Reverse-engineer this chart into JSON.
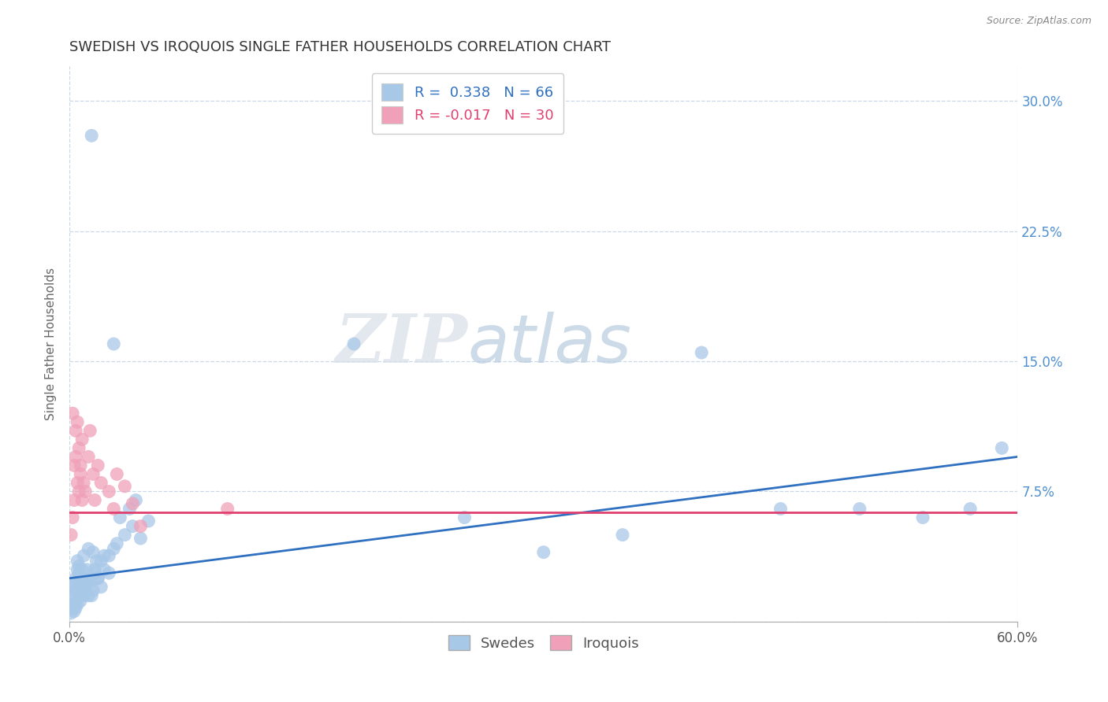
{
  "title": "SWEDISH VS IROQUOIS SINGLE FATHER HOUSEHOLDS CORRELATION CHART",
  "source": "Source: ZipAtlas.com",
  "ylabel": "Single Father Households",
  "xlim": [
    0.0,
    0.6
  ],
  "ylim": [
    0.0,
    0.32
  ],
  "xticks": [
    0.0,
    0.6
  ],
  "xticklabels": [
    "0.0%",
    "60.0%"
  ],
  "yticks": [
    0.0,
    0.075,
    0.15,
    0.225,
    0.3
  ],
  "yticklabels": [
    "",
    "7.5%",
    "15.0%",
    "22.5%",
    "30.0%"
  ],
  "r_swedish": 0.338,
  "n_swedish": 66,
  "r_iroquois": -0.017,
  "n_iroquois": 30,
  "swedish_color": "#a8c8e8",
  "swedish_line_color": "#3070c0",
  "iroquois_color": "#f0a0b8",
  "iroquois_line_color": "#e04070",
  "grid_color": "#c8d8e8",
  "background_color": "#ffffff",
  "watermark_zip": "ZIP",
  "watermark_atlas": "atlas",
  "title_fontsize": 13,
  "axis_label_fontsize": 11,
  "tick_fontsize": 12,
  "legend_fontsize": 13,
  "right_tick_color": "#5090d0",
  "swedish_scatter": [
    [
      0.001,
      0.005
    ],
    [
      0.002,
      0.008
    ],
    [
      0.001,
      0.012
    ],
    [
      0.003,
      0.01
    ],
    [
      0.002,
      0.015
    ],
    [
      0.003,
      0.006
    ],
    [
      0.004,
      0.018
    ],
    [
      0.002,
      0.02
    ],
    [
      0.005,
      0.01
    ],
    [
      0.004,
      0.025
    ],
    [
      0.006,
      0.015
    ],
    [
      0.003,
      0.022
    ],
    [
      0.005,
      0.03
    ],
    [
      0.007,
      0.012
    ],
    [
      0.006,
      0.028
    ],
    [
      0.004,
      0.008
    ],
    [
      0.008,
      0.02
    ],
    [
      0.005,
      0.035
    ],
    [
      0.009,
      0.015
    ],
    [
      0.007,
      0.025
    ],
    [
      0.01,
      0.018
    ],
    [
      0.006,
      0.032
    ],
    [
      0.011,
      0.022
    ],
    [
      0.008,
      0.03
    ],
    [
      0.012,
      0.015
    ],
    [
      0.009,
      0.038
    ],
    [
      0.013,
      0.025
    ],
    [
      0.01,
      0.02
    ],
    [
      0.014,
      0.28
    ],
    [
      0.011,
      0.03
    ],
    [
      0.015,
      0.018
    ],
    [
      0.012,
      0.042
    ],
    [
      0.016,
      0.028
    ],
    [
      0.013,
      0.022
    ],
    [
      0.017,
      0.035
    ],
    [
      0.014,
      0.015
    ],
    [
      0.018,
      0.025
    ],
    [
      0.015,
      0.04
    ],
    [
      0.02,
      0.02
    ],
    [
      0.016,
      0.03
    ],
    [
      0.022,
      0.038
    ],
    [
      0.018,
      0.025
    ],
    [
      0.025,
      0.028
    ],
    [
      0.02,
      0.035
    ],
    [
      0.028,
      0.16
    ],
    [
      0.022,
      0.03
    ],
    [
      0.03,
      0.045
    ],
    [
      0.025,
      0.038
    ],
    [
      0.035,
      0.05
    ],
    [
      0.028,
      0.042
    ],
    [
      0.04,
      0.055
    ],
    [
      0.032,
      0.06
    ],
    [
      0.045,
      0.048
    ],
    [
      0.038,
      0.065
    ],
    [
      0.05,
      0.058
    ],
    [
      0.042,
      0.07
    ],
    [
      0.18,
      0.16
    ],
    [
      0.25,
      0.06
    ],
    [
      0.3,
      0.04
    ],
    [
      0.35,
      0.05
    ],
    [
      0.4,
      0.155
    ],
    [
      0.45,
      0.065
    ],
    [
      0.5,
      0.065
    ],
    [
      0.54,
      0.06
    ],
    [
      0.57,
      0.065
    ],
    [
      0.59,
      0.1
    ]
  ],
  "iroquois_scatter": [
    [
      0.001,
      0.05
    ],
    [
      0.002,
      0.12
    ],
    [
      0.003,
      0.09
    ],
    [
      0.002,
      0.06
    ],
    [
      0.004,
      0.11
    ],
    [
      0.003,
      0.07
    ],
    [
      0.005,
      0.08
    ],
    [
      0.004,
      0.095
    ],
    [
      0.006,
      0.075
    ],
    [
      0.005,
      0.115
    ],
    [
      0.007,
      0.085
    ],
    [
      0.006,
      0.1
    ],
    [
      0.008,
      0.07
    ],
    [
      0.007,
      0.09
    ],
    [
      0.009,
      0.08
    ],
    [
      0.008,
      0.105
    ],
    [
      0.01,
      0.075
    ],
    [
      0.012,
      0.095
    ],
    [
      0.015,
      0.085
    ],
    [
      0.013,
      0.11
    ],
    [
      0.018,
      0.09
    ],
    [
      0.016,
      0.07
    ],
    [
      0.02,
      0.08
    ],
    [
      0.025,
      0.075
    ],
    [
      0.028,
      0.065
    ],
    [
      0.03,
      0.085
    ],
    [
      0.035,
      0.078
    ],
    [
      0.04,
      0.068
    ],
    [
      0.045,
      0.055
    ],
    [
      0.1,
      0.065
    ]
  ],
  "sw_line_x": [
    0.0,
    0.6
  ],
  "sw_line_y": [
    0.025,
    0.095
  ],
  "iq_line_y": [
    0.063,
    0.063
  ]
}
